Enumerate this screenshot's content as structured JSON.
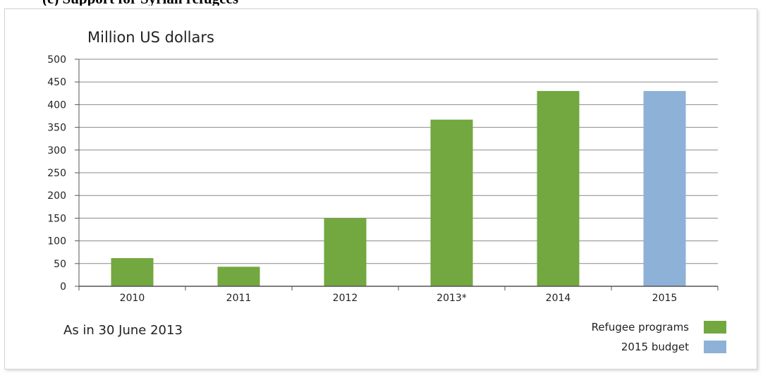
{
  "header": {
    "clipped_heading": "(c) Support for Syrian refugees"
  },
  "chart_data": {
    "type": "bar",
    "title": "",
    "ylabel": "Million US dollars",
    "xlabel": "",
    "categories": [
      "2010",
      "2011",
      "2012",
      "2013*",
      "2014",
      "2015"
    ],
    "ylim": [
      0,
      500
    ],
    "yticks": [
      0,
      50,
      100,
      150,
      200,
      250,
      300,
      350,
      400,
      450,
      500
    ],
    "grid": true,
    "series": [
      {
        "name": "Refugee programs",
        "color": "#72a83f",
        "values": [
          62,
          43,
          150,
          367,
          430,
          null
        ]
      },
      {
        "name": "2015 budget",
        "color": "#8eb1d7",
        "values": [
          null,
          null,
          null,
          null,
          null,
          430
        ]
      }
    ],
    "annotation": "As in 30 June 2013",
    "legend_position": "bottom-right"
  }
}
